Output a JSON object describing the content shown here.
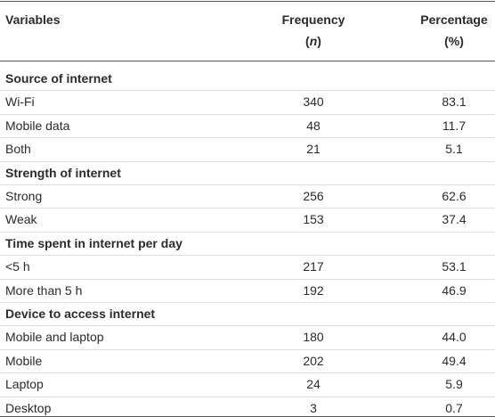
{
  "table": {
    "header": {
      "variables": "Variables",
      "frequency": "Frequency",
      "frequency_sub": [
        "(",
        "n",
        ")"
      ],
      "percentage": "Percentage",
      "percentage_sub": "(%)"
    },
    "sections": [
      {
        "title": "Source of internet",
        "rows": [
          [
            "Wi-Fi",
            "340",
            "83.1"
          ],
          [
            "Mobile data",
            "48",
            "11.7"
          ],
          [
            "Both",
            "21",
            "5.1"
          ]
        ]
      },
      {
        "title": "Strength of internet",
        "rows": [
          [
            "Strong",
            "256",
            "62.6"
          ],
          [
            "Weak",
            "153",
            "37.4"
          ]
        ]
      },
      {
        "title": "Time spent in internet per day",
        "rows": [
          [
            "<5 h",
            "217",
            "53.1"
          ],
          [
            "More than 5 h",
            "192",
            "46.9"
          ]
        ]
      },
      {
        "title": "Device to access internet",
        "rows": [
          [
            "Mobile and laptop",
            "180",
            "44.0"
          ],
          [
            "Mobile",
            "202",
            "49.4"
          ],
          [
            "Laptop",
            "24",
            "5.9"
          ],
          [
            "Desktop",
            "3",
            "0.7"
          ]
        ]
      }
    ]
  }
}
